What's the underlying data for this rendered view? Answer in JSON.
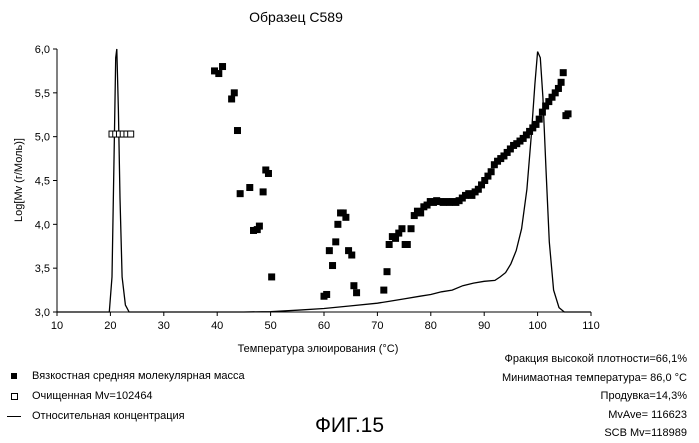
{
  "chart_data": {
    "type": "scatter",
    "title": "Образец С589",
    "xlabel": "Температура элюирования (°С)",
    "ylabel": "Log[Mv (г/Моль)]",
    "xlim": [
      10,
      110
    ],
    "ylim": [
      3.0,
      6.0
    ],
    "x_ticks": [
      10,
      20,
      30,
      40,
      50,
      60,
      70,
      80,
      90,
      100,
      110
    ],
    "y_ticks": [
      3.0,
      3.5,
      4.0,
      4.5,
      5.0,
      5.5,
      6.0
    ],
    "x_tick_labels": [
      "10",
      "20",
      "30",
      "40",
      "50",
      "60",
      "70",
      "80",
      "90",
      "100",
      "110"
    ],
    "y_tick_labels": [
      "3,0",
      "3,5",
      "4,0",
      "4,5",
      "5,0",
      "5,5",
      "6,0"
    ],
    "grid": false,
    "series": [
      {
        "name": "Вязкостная средняя молекулярная масса",
        "marker": "filled-square",
        "points": [
          [
            39.5,
            5.75
          ],
          [
            40.3,
            5.72
          ],
          [
            41.0,
            5.8
          ],
          [
            42.7,
            5.43
          ],
          [
            43.2,
            5.5
          ],
          [
            43.8,
            5.07
          ],
          [
            44.3,
            4.35
          ],
          [
            46.1,
            4.42
          ],
          [
            46.8,
            3.93
          ],
          [
            47.5,
            3.94
          ],
          [
            47.9,
            3.98
          ],
          [
            48.6,
            4.37
          ],
          [
            49.1,
            4.62
          ],
          [
            49.6,
            4.58
          ],
          [
            50.2,
            3.4
          ],
          [
            60.0,
            3.18
          ],
          [
            60.5,
            3.2
          ],
          [
            61.0,
            3.7
          ],
          [
            61.6,
            3.53
          ],
          [
            62.2,
            3.8
          ],
          [
            62.6,
            4.0
          ],
          [
            63.1,
            4.13
          ],
          [
            63.6,
            4.13
          ],
          [
            64.1,
            4.08
          ],
          [
            64.6,
            3.7
          ],
          [
            65.2,
            3.65
          ],
          [
            65.6,
            3.3
          ],
          [
            66.1,
            3.22
          ],
          [
            71.2,
            3.25
          ],
          [
            71.8,
            3.46
          ],
          [
            72.2,
            3.77
          ],
          [
            72.8,
            3.86
          ],
          [
            73.4,
            3.84
          ],
          [
            74.0,
            3.9
          ],
          [
            74.6,
            3.95
          ],
          [
            75.2,
            3.77
          ],
          [
            75.6,
            3.77
          ],
          [
            76.3,
            3.95
          ],
          [
            76.9,
            4.1
          ],
          [
            77.5,
            4.15
          ],
          [
            78.1,
            4.13
          ],
          [
            78.7,
            4.2
          ],
          [
            79.3,
            4.22
          ],
          [
            79.9,
            4.26
          ],
          [
            80.5,
            4.25
          ],
          [
            81.1,
            4.27
          ],
          [
            81.7,
            4.26
          ],
          [
            82.3,
            4.25
          ],
          [
            82.9,
            4.26
          ],
          [
            83.5,
            4.25
          ],
          [
            84.1,
            4.26
          ],
          [
            84.7,
            4.25
          ],
          [
            85.3,
            4.27
          ],
          [
            85.9,
            4.3
          ],
          [
            86.5,
            4.33
          ],
          [
            87.1,
            4.35
          ],
          [
            87.7,
            4.33
          ],
          [
            88.3,
            4.37
          ],
          [
            88.9,
            4.4
          ],
          [
            89.5,
            4.45
          ],
          [
            90.1,
            4.5
          ],
          [
            90.7,
            4.55
          ],
          [
            91.3,
            4.6
          ],
          [
            91.9,
            4.68
          ],
          [
            92.5,
            4.72
          ],
          [
            93.1,
            4.75
          ],
          [
            93.7,
            4.78
          ],
          [
            94.3,
            4.82
          ],
          [
            94.9,
            4.86
          ],
          [
            95.5,
            4.9
          ],
          [
            96.1,
            4.92
          ],
          [
            96.7,
            4.95
          ],
          [
            97.3,
            4.98
          ],
          [
            97.9,
            5.02
          ],
          [
            98.5,
            5.06
          ],
          [
            99.1,
            5.1
          ],
          [
            99.7,
            5.14
          ],
          [
            100.3,
            5.2
          ],
          [
            100.9,
            5.28
          ],
          [
            101.5,
            5.35
          ],
          [
            102.1,
            5.4
          ],
          [
            102.7,
            5.45
          ],
          [
            103.3,
            5.5
          ],
          [
            103.9,
            5.55
          ],
          [
            104.4,
            5.62
          ],
          [
            104.8,
            5.73
          ],
          [
            105.3,
            5.24
          ],
          [
            105.7,
            5.26
          ]
        ]
      },
      {
        "name": "Очищенная Mv=102464",
        "marker": "open-square",
        "points": [
          [
            20.3,
            5.03
          ],
          [
            21.0,
            5.03
          ],
          [
            21.7,
            5.03
          ],
          [
            22.4,
            5.03
          ],
          [
            23.1,
            5.03
          ],
          [
            23.8,
            5.03
          ]
        ]
      },
      {
        "name": "Относительная концентрация",
        "marker": "line",
        "points": [
          [
            10,
            3.0
          ],
          [
            19.8,
            3.0
          ],
          [
            20.3,
            3.4
          ],
          [
            20.7,
            4.8
          ],
          [
            21.0,
            5.9
          ],
          [
            21.2,
            6.0
          ],
          [
            21.5,
            5.3
          ],
          [
            21.8,
            4.3
          ],
          [
            22.2,
            3.4
          ],
          [
            22.8,
            3.08
          ],
          [
            23.5,
            3.0
          ],
          [
            45,
            3.0
          ],
          [
            50,
            3.005
          ],
          [
            55,
            3.02
          ],
          [
            60,
            3.04
          ],
          [
            65,
            3.07
          ],
          [
            70,
            3.1
          ],
          [
            72,
            3.12
          ],
          [
            75,
            3.15
          ],
          [
            78,
            3.18
          ],
          [
            80,
            3.2
          ],
          [
            82,
            3.23
          ],
          [
            84,
            3.25
          ],
          [
            86,
            3.3
          ],
          [
            88,
            3.33
          ],
          [
            90,
            3.35
          ],
          [
            92,
            3.36
          ],
          [
            93,
            3.4
          ],
          [
            94,
            3.45
          ],
          [
            95,
            3.55
          ],
          [
            96,
            3.7
          ],
          [
            97,
            3.95
          ],
          [
            98,
            4.4
          ],
          [
            98.8,
            5.0
          ],
          [
            99.5,
            5.6
          ],
          [
            100.0,
            5.97
          ],
          [
            100.5,
            5.9
          ],
          [
            101.0,
            5.45
          ],
          [
            101.6,
            4.6
          ],
          [
            102.2,
            3.8
          ],
          [
            103.0,
            3.25
          ],
          [
            104.0,
            3.05
          ],
          [
            105.0,
            3.0
          ],
          [
            110,
            3.0
          ]
        ]
      }
    ],
    "legend": {
      "placement": "bottom-left",
      "entries": [
        "Вязкостная средняя молекулярная масса",
        "Очищенная Mv=102464",
        "Относительная концентрация"
      ]
    },
    "stats": [
      "Фракция высокой плотности=66,1%",
      "Минимаотная температура= 86,0 °С",
      "Продувка=14,3%",
      "MvAve= 116623",
      "SCB Mv=118989"
    ],
    "figure_caption": "ФИГ.15"
  }
}
